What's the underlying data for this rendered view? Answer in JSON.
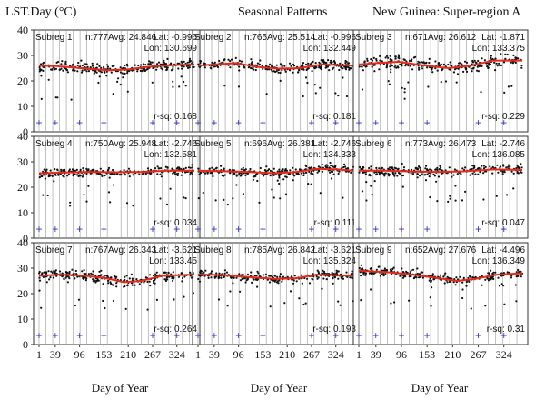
{
  "titles": {
    "left": "LST.Day (°C)",
    "middle": "Seasonal Patterns",
    "right": "New Guinea: Super-region A"
  },
  "colors": {
    "trend": "#e8281a",
    "points": "#111111",
    "grid": "#9a9a9a",
    "marker": "#3030c8",
    "frame": "#333333"
  },
  "chart_data": {
    "type": "scatter",
    "xlabel": "Day of Year",
    "ylabel": "LST.Day (°C)",
    "xticks": [
      1,
      39,
      96,
      153,
      210,
      267,
      324
    ],
    "xlim": [
      1,
      365
    ],
    "yticks": [
      0,
      10,
      20,
      30,
      40
    ],
    "ylim": [
      0,
      40
    ],
    "grid_x": true,
    "marker_label": "+",
    "marker_days": [
      1,
      39,
      96,
      153,
      267,
      324
    ],
    "panels": [
      {
        "label": "Subreg 1",
        "n": "n:777",
        "avg": "Avg: 24.846",
        "lat": "Lat: -0.996",
        "lon": "Lon: 130.699",
        "rsq": "r-sq: 0.168",
        "trend": [
          [
            1,
            26
          ],
          [
            40,
            25.8
          ],
          [
            100,
            25
          ],
          [
            160,
            24.2
          ],
          [
            210,
            24.5
          ],
          [
            270,
            25.8
          ],
          [
            330,
            26.3
          ],
          [
            365,
            26.5
          ]
        ],
        "spread": 3
      },
      {
        "label": "Subreg 2",
        "n": "n:765",
        "avg": "Avg: 25.514",
        "lat": "Lat: -0.996",
        "lon": "Lon: 132.449",
        "rsq": "r-sq: 0.181",
        "trend": [
          [
            1,
            26
          ],
          [
            40,
            26.5
          ],
          [
            90,
            27
          ],
          [
            140,
            25.5
          ],
          [
            190,
            24.8
          ],
          [
            240,
            25
          ],
          [
            290,
            26.5
          ],
          [
            365,
            26
          ]
        ],
        "spread": 3
      },
      {
        "label": "Subreg 3",
        "n": "n:671",
        "avg": "Avg: 26.612",
        "lat": "Lat: -1.871",
        "lon": "Lon: 133.375",
        "rsq": "r-sq: 0.229",
        "trend": [
          [
            1,
            26.5
          ],
          [
            40,
            27
          ],
          [
            90,
            27.5
          ],
          [
            150,
            26
          ],
          [
            200,
            25
          ],
          [
            250,
            26
          ],
          [
            300,
            28
          ],
          [
            365,
            28
          ]
        ],
        "spread": 3.5
      },
      {
        "label": "Subreg 4",
        "n": "n:750",
        "avg": "Avg: 25.948",
        "lat": "Lat: -2.746",
        "lon": "Lon: 132.581",
        "rsq": "r-sq: 0.034",
        "trend": [
          [
            1,
            25.5
          ],
          [
            60,
            25.8
          ],
          [
            120,
            26
          ],
          [
            180,
            25.9
          ],
          [
            240,
            26
          ],
          [
            300,
            26.5
          ],
          [
            365,
            26.5
          ]
        ],
        "spread": 2.5
      },
      {
        "label": "Subreg 5",
        "n": "n:696",
        "avg": "Avg: 26.381",
        "lat": "Lat: -2.746",
        "lon": "Lon: 134.333",
        "rsq": "r-sq: 0.111",
        "trend": [
          [
            1,
            26.5
          ],
          [
            60,
            26.3
          ],
          [
            120,
            26
          ],
          [
            180,
            25.5
          ],
          [
            230,
            26
          ],
          [
            280,
            27.2
          ],
          [
            330,
            27
          ],
          [
            365,
            26.5
          ]
        ],
        "spread": 3
      },
      {
        "label": "Subreg 6",
        "n": "n:773",
        "avg": "Avg: 26.473",
        "lat": "Lat: -2.746",
        "lon": "Lon: 136.085",
        "rsq": "r-sq: 0.047",
        "trend": [
          [
            1,
            26.5
          ],
          [
            60,
            26.5
          ],
          [
            120,
            26.2
          ],
          [
            180,
            26
          ],
          [
            240,
            26.3
          ],
          [
            300,
            27
          ],
          [
            365,
            26.8
          ]
        ],
        "spread": 3
      },
      {
        "label": "Subreg 7",
        "n": "n:767",
        "avg": "Avg: 26.343",
        "lat": "Lat: -3.621",
        "lon": "Lon: 133.45",
        "rsq": "r-sq: 0.264",
        "trend": [
          [
            1,
            27
          ],
          [
            50,
            27.5
          ],
          [
            110,
            27
          ],
          [
            160,
            26
          ],
          [
            200,
            24.5
          ],
          [
            240,
            25
          ],
          [
            290,
            27
          ],
          [
            365,
            27.5
          ]
        ],
        "spread": 3
      },
      {
        "label": "Subreg 8",
        "n": "n:785",
        "avg": "Avg: 26.842",
        "lat": "Lat: -3.621",
        "lon": "Lon: 135.324",
        "rsq": "r-sq: 0.193",
        "trend": [
          [
            1,
            27.5
          ],
          [
            60,
            27.3
          ],
          [
            120,
            26.5
          ],
          [
            180,
            25.8
          ],
          [
            230,
            26
          ],
          [
            280,
            27.5
          ],
          [
            330,
            27.2
          ],
          [
            365,
            27
          ]
        ],
        "spread": 2.5
      },
      {
        "label": "Subreg 9",
        "n": "n:652",
        "avg": "Avg: 27.676",
        "lat": "Lat: -4.496",
        "lon": "Lon: 136.349",
        "rsq": "r-sq: 0.31",
        "trend": [
          [
            1,
            29
          ],
          [
            60,
            28.5
          ],
          [
            120,
            27.5
          ],
          [
            180,
            26
          ],
          [
            220,
            25
          ],
          [
            260,
            25.8
          ],
          [
            310,
            27.5
          ],
          [
            365,
            28
          ]
        ],
        "spread": 2.5
      }
    ]
  }
}
